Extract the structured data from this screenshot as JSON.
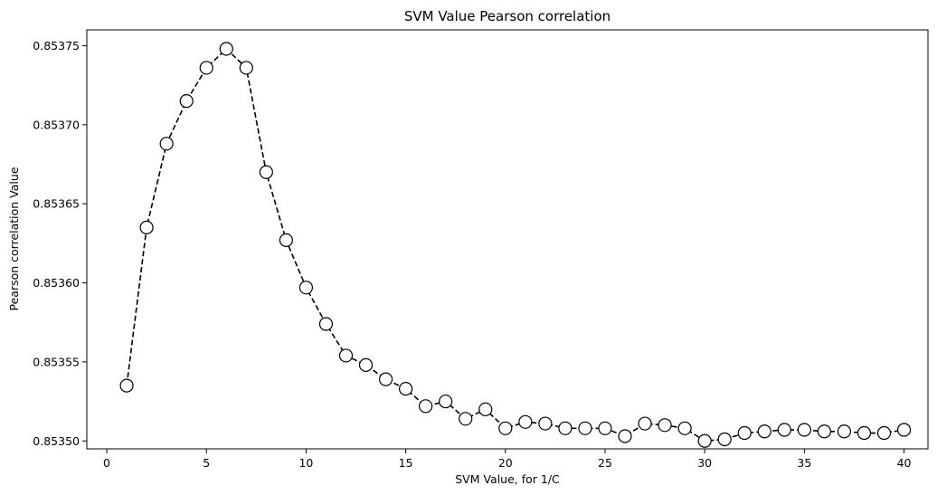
{
  "chart_data": {
    "type": "line",
    "title": "SVM Value Pearson correlation",
    "xlabel": "SVM Value, for 1/C",
    "ylabel": "Pearson correlation Value",
    "xlim": [
      -1,
      41.2
    ],
    "ylim": [
      0.853495,
      0.85376
    ],
    "xticks": [
      0,
      5,
      10,
      15,
      20,
      25,
      30,
      35,
      40
    ],
    "yticks": [
      0.8535,
      0.85355,
      0.8536,
      0.85365,
      0.8537,
      0.85375
    ],
    "ytick_labels": [
      "0.85350",
      "0.85355",
      "0.85360",
      "0.85365",
      "0.85370",
      "0.85375"
    ],
    "grid": false,
    "series": [
      {
        "line_style": "dashed",
        "line_color": "#000000",
        "marker": "circle",
        "marker_face": "#ffffff",
        "marker_edge": "#000000",
        "x": [
          1,
          2,
          3,
          4,
          5,
          6,
          7,
          8,
          9,
          10,
          11,
          12,
          13,
          14,
          15,
          16,
          17,
          18,
          19,
          20,
          21,
          22,
          23,
          24,
          25,
          26,
          27,
          28,
          29,
          30,
          31,
          32,
          33,
          34,
          35,
          36,
          37,
          38,
          39,
          40
        ],
        "y": [
          0.853535,
          0.853635,
          0.853688,
          0.853715,
          0.853736,
          0.853748,
          0.853736,
          0.85367,
          0.853627,
          0.853597,
          0.853574,
          0.853554,
          0.853548,
          0.853539,
          0.853533,
          0.853522,
          0.853525,
          0.853514,
          0.85352,
          0.853508,
          0.853512,
          0.853511,
          0.853508,
          0.853508,
          0.853508,
          0.853503,
          0.853511,
          0.85351,
          0.853508,
          0.8535,
          0.853501,
          0.853505,
          0.853506,
          0.853507,
          0.853507,
          0.853506,
          0.853506,
          0.853505,
          0.853505,
          0.853507
        ]
      }
    ]
  }
}
